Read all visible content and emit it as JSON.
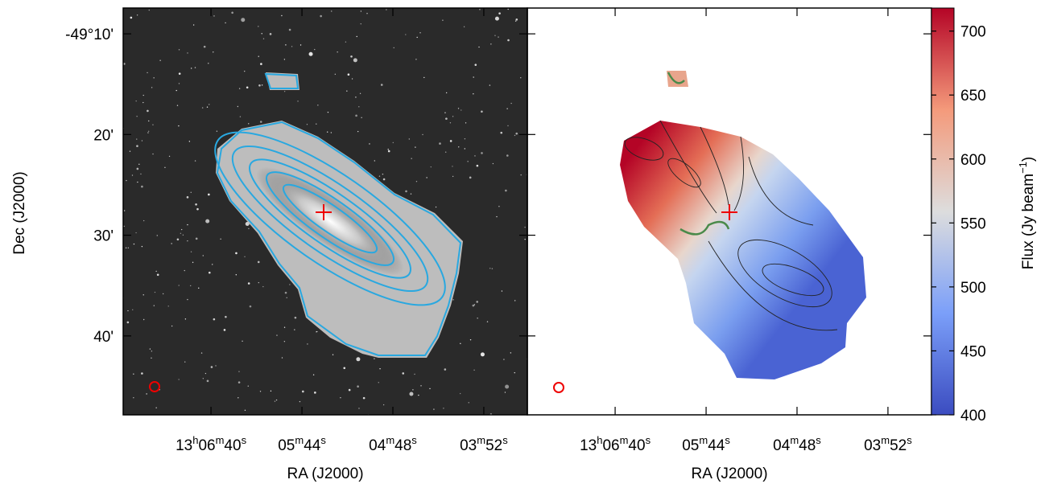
{
  "chart_data": [
    {
      "type": "image",
      "xlabel": "RA (J2000)",
      "ylabel": "Dec (J2000)",
      "xlim": [
        196.892,
        195.855
      ],
      "ylim": [
        -49.7973,
        -49.124
      ],
      "xticks": [
        {
          "value": 196.6667,
          "label": "13h06m40s"
        },
        {
          "value": 196.4333,
          "label": "05m44s"
        },
        {
          "value": 196.2,
          "label": "04m48s"
        },
        {
          "value": 195.9667,
          "label": "03m52s"
        }
      ],
      "yticks": [
        {
          "value": -49.6667,
          "label": "40'"
        },
        {
          "value": -49.5,
          "label": "30'"
        },
        {
          "value": -49.3333,
          "label": "20'"
        },
        {
          "value": -49.1667,
          "label": "-49°10'"
        }
      ]
    },
    {
      "type": "image",
      "xlabel": "RA (J2000)",
      "xlim": [
        196.892,
        195.855
      ],
      "ylim": [
        -49.7973,
        -49.124
      ],
      "xticks": [
        {
          "value": 196.6667,
          "label": "13h06m40s"
        },
        {
          "value": 196.4333,
          "label": "05m44s"
        },
        {
          "value": 196.2,
          "label": "04m48s"
        },
        {
          "value": 195.9667,
          "label": "03m52s"
        }
      ],
      "colorbar": {
        "label": "Flux (Jy beam−1)",
        "lim": [
          400,
          718
        ],
        "ticks": [
          400,
          450,
          500,
          550,
          600,
          650,
          700
        ]
      }
    }
  ]
}
